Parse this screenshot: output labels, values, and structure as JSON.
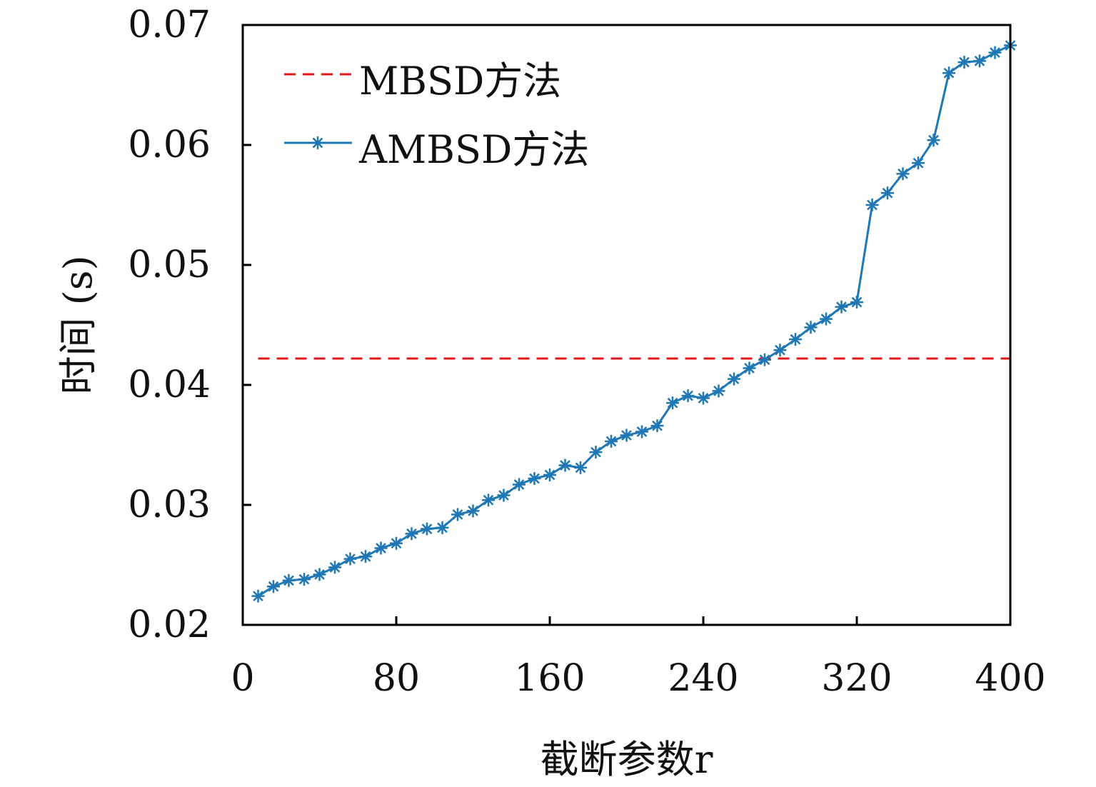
{
  "chart_data": {
    "type": "line",
    "xlabel": "截断参数r",
    "ylabel": "时间 (s)",
    "xlim": [
      0,
      400
    ],
    "ylim": [
      0.02,
      0.07
    ],
    "x_ticks": [
      0,
      80,
      160,
      240,
      320,
      400
    ],
    "x_tick_labels": [
      "0",
      "80",
      "160",
      "240",
      "320",
      "400"
    ],
    "y_ticks": [
      0.02,
      0.03,
      0.04,
      0.05,
      0.06,
      0.07
    ],
    "y_tick_labels": [
      "0.02",
      "0.03",
      "0.04",
      "0.05",
      "0.06",
      "0.07"
    ],
    "grid": false,
    "legend_position": "top-left",
    "series": [
      {
        "name": "MBSD方法",
        "style": "dashed",
        "color": "#e31a1c",
        "x": [
          8,
          400
        ],
        "y": [
          0.0422,
          0.0422
        ]
      },
      {
        "name": "AMBSD方法",
        "style": "solid",
        "marker": "asterisk",
        "color": "#1f77b4",
        "x": [
          8,
          16,
          24,
          32,
          40,
          48,
          56,
          64,
          72,
          80,
          88,
          96,
          104,
          112,
          120,
          128,
          136,
          144,
          152,
          160,
          168,
          176,
          184,
          192,
          200,
          208,
          216,
          224,
          232,
          240,
          248,
          256,
          264,
          272,
          280,
          288,
          296,
          304,
          312,
          320,
          328,
          336,
          344,
          352,
          360,
          368,
          376,
          384,
          392,
          400
        ],
        "y": [
          0.0224,
          0.0232,
          0.0237,
          0.0238,
          0.0242,
          0.0248,
          0.0255,
          0.0257,
          0.0264,
          0.0268,
          0.0276,
          0.028,
          0.0281,
          0.0292,
          0.0295,
          0.0304,
          0.0308,
          0.0317,
          0.0322,
          0.0325,
          0.0333,
          0.0331,
          0.0344,
          0.0353,
          0.0358,
          0.0361,
          0.0366,
          0.0385,
          0.0391,
          0.0389,
          0.0395,
          0.0405,
          0.0414,
          0.0421,
          0.0429,
          0.0438,
          0.0448,
          0.0455,
          0.0465,
          0.0469,
          0.055,
          0.056,
          0.0576,
          0.0585,
          0.0604,
          0.066,
          0.0669,
          0.067,
          0.0677,
          0.0683
        ]
      }
    ]
  }
}
